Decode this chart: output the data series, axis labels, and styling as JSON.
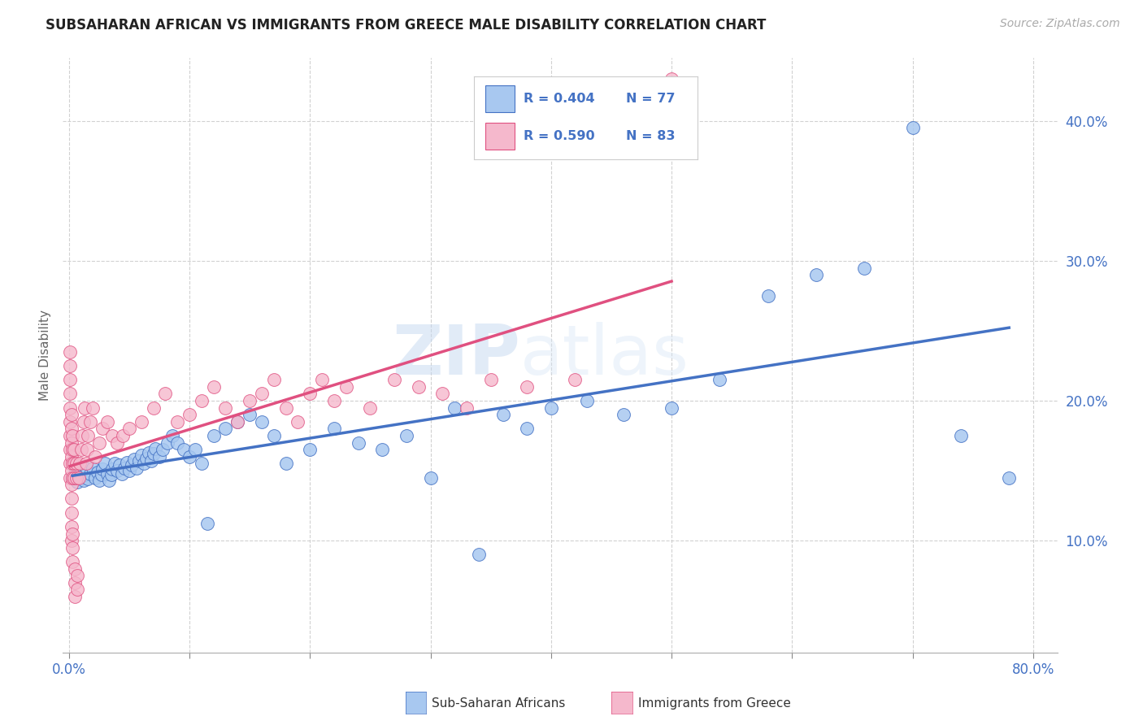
{
  "title": "SUBSAHARAN AFRICAN VS IMMIGRANTS FROM GREECE MALE DISABILITY CORRELATION CHART",
  "source": "Source: ZipAtlas.com",
  "xlabel_blue": "Sub-Saharan Africans",
  "xlabel_pink": "Immigrants from Greece",
  "ylabel": "Male Disability",
  "legend_blue_R": "R = 0.404",
  "legend_blue_N": "N = 77",
  "legend_pink_R": "R = 0.590",
  "legend_pink_N": "N = 83",
  "xlim": [
    -0.005,
    0.82
  ],
  "ylim": [
    0.02,
    0.445
  ],
  "yticks": [
    0.1,
    0.2,
    0.3,
    0.4
  ],
  "color_blue": "#a8c8f0",
  "color_pink": "#f5b8cc",
  "color_blue_line": "#4472c4",
  "color_pink_line": "#e05080",
  "color_pink_line_dash": "#e8a0b8",
  "background_color": "#ffffff",
  "watermark_zip": "ZIP",
  "watermark_atlas": "atlas",
  "blue_scatter_x": [
    0.003,
    0.005,
    0.007,
    0.008,
    0.01,
    0.012,
    0.013,
    0.015,
    0.016,
    0.018,
    0.02,
    0.022,
    0.024,
    0.025,
    0.027,
    0.028,
    0.03,
    0.032,
    0.033,
    0.035,
    0.036,
    0.038,
    0.04,
    0.042,
    0.044,
    0.046,
    0.048,
    0.05,
    0.052,
    0.054,
    0.056,
    0.058,
    0.06,
    0.062,
    0.064,
    0.066,
    0.068,
    0.07,
    0.072,
    0.075,
    0.078,
    0.082,
    0.086,
    0.09,
    0.095,
    0.1,
    0.105,
    0.11,
    0.115,
    0.12,
    0.13,
    0.14,
    0.15,
    0.16,
    0.17,
    0.18,
    0.2,
    0.22,
    0.24,
    0.26,
    0.28,
    0.3,
    0.32,
    0.34,
    0.36,
    0.38,
    0.4,
    0.43,
    0.46,
    0.5,
    0.54,
    0.58,
    0.62,
    0.66,
    0.7,
    0.74,
    0.78
  ],
  "blue_scatter_y": [
    0.145,
    0.148,
    0.142,
    0.146,
    0.15,
    0.143,
    0.147,
    0.151,
    0.144,
    0.148,
    0.152,
    0.145,
    0.149,
    0.143,
    0.147,
    0.151,
    0.155,
    0.148,
    0.143,
    0.147,
    0.151,
    0.155,
    0.15,
    0.154,
    0.148,
    0.152,
    0.156,
    0.15,
    0.154,
    0.158,
    0.152,
    0.157,
    0.161,
    0.155,
    0.159,
    0.163,
    0.157,
    0.162,
    0.166,
    0.16,
    0.165,
    0.17,
    0.175,
    0.17,
    0.165,
    0.16,
    0.165,
    0.155,
    0.112,
    0.175,
    0.18,
    0.185,
    0.19,
    0.185,
    0.175,
    0.155,
    0.165,
    0.18,
    0.17,
    0.165,
    0.175,
    0.145,
    0.195,
    0.09,
    0.19,
    0.18,
    0.195,
    0.2,
    0.19,
    0.195,
    0.215,
    0.275,
    0.29,
    0.295,
    0.395,
    0.175,
    0.145
  ],
  "pink_scatter_x": [
    0.001,
    0.001,
    0.001,
    0.001,
    0.001,
    0.001,
    0.001,
    0.001,
    0.001,
    0.001,
    0.002,
    0.002,
    0.002,
    0.002,
    0.002,
    0.002,
    0.002,
    0.002,
    0.002,
    0.002,
    0.003,
    0.003,
    0.003,
    0.003,
    0.003,
    0.003,
    0.003,
    0.004,
    0.004,
    0.004,
    0.005,
    0.005,
    0.005,
    0.006,
    0.006,
    0.007,
    0.007,
    0.008,
    0.009,
    0.01,
    0.011,
    0.012,
    0.013,
    0.014,
    0.015,
    0.016,
    0.018,
    0.02,
    0.022,
    0.025,
    0.028,
    0.032,
    0.036,
    0.04,
    0.045,
    0.05,
    0.06,
    0.07,
    0.08,
    0.09,
    0.1,
    0.11,
    0.12,
    0.13,
    0.14,
    0.15,
    0.16,
    0.17,
    0.18,
    0.19,
    0.2,
    0.21,
    0.22,
    0.23,
    0.25,
    0.27,
    0.29,
    0.31,
    0.33,
    0.35,
    0.38,
    0.42,
    0.5
  ],
  "pink_scatter_y": [
    0.145,
    0.155,
    0.165,
    0.175,
    0.185,
    0.195,
    0.205,
    0.215,
    0.225,
    0.235,
    0.13,
    0.14,
    0.15,
    0.16,
    0.17,
    0.18,
    0.19,
    0.1,
    0.11,
    0.12,
    0.145,
    0.155,
    0.165,
    0.175,
    0.085,
    0.095,
    0.105,
    0.145,
    0.155,
    0.165,
    0.06,
    0.07,
    0.08,
    0.145,
    0.155,
    0.065,
    0.075,
    0.145,
    0.155,
    0.165,
    0.175,
    0.185,
    0.195,
    0.155,
    0.165,
    0.175,
    0.185,
    0.195,
    0.16,
    0.17,
    0.18,
    0.185,
    0.175,
    0.17,
    0.175,
    0.18,
    0.185,
    0.195,
    0.205,
    0.185,
    0.19,
    0.2,
    0.21,
    0.195,
    0.185,
    0.2,
    0.205,
    0.215,
    0.195,
    0.185,
    0.205,
    0.215,
    0.2,
    0.21,
    0.195,
    0.215,
    0.21,
    0.205,
    0.195,
    0.215,
    0.21,
    0.215,
    0.43
  ]
}
